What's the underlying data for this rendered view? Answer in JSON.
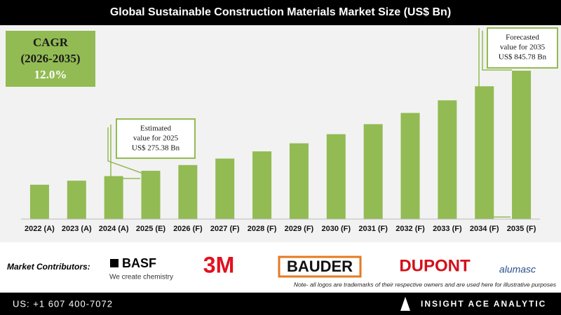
{
  "chart_data": {
    "type": "bar",
    "title": "Global Sustainable Construction Materials Market Size (US$ Bn)",
    "categories": [
      "2022 (A)",
      "2023 (A)",
      "2024 (A)",
      "2025 (E)",
      "2026 (F)",
      "2027 (F)",
      "2028 (F)",
      "2029 (F)",
      "2030 (F)",
      "2031 (F)",
      "2032 (F)",
      "2033 (F)",
      "2034 (F)",
      "2035 (F)"
    ],
    "values": [
      196,
      219,
      245,
      275.38,
      308,
      345,
      386,
      432,
      484,
      541,
      605,
      677,
      757,
      845.78
    ],
    "color": "#92bb53",
    "cagr": {
      "label": "CAGR",
      "period": "(2026-2035)",
      "value": "12.0%"
    },
    "annotations": [
      {
        "lines": [
          "Estimated",
          "value for 2025",
          "US$ 275.38 Bn"
        ]
      },
      {
        "lines": [
          "Forecasted",
          "value for 2035",
          "US$ 845.78 Bn"
        ]
      }
    ]
  },
  "contributors": {
    "label": "Market Contributors:",
    "logos": [
      "BASF",
      "We create chemistry",
      "3M",
      "BAUDER",
      "DUPONT",
      "alumasc"
    ],
    "note": "Note- all logos are trademarks of their respective owners and are used here for illustrative purposes"
  },
  "footer": {
    "phone": "US: +1 607 400-7072",
    "company": "INSIGHT ACE ANALYTIC"
  }
}
